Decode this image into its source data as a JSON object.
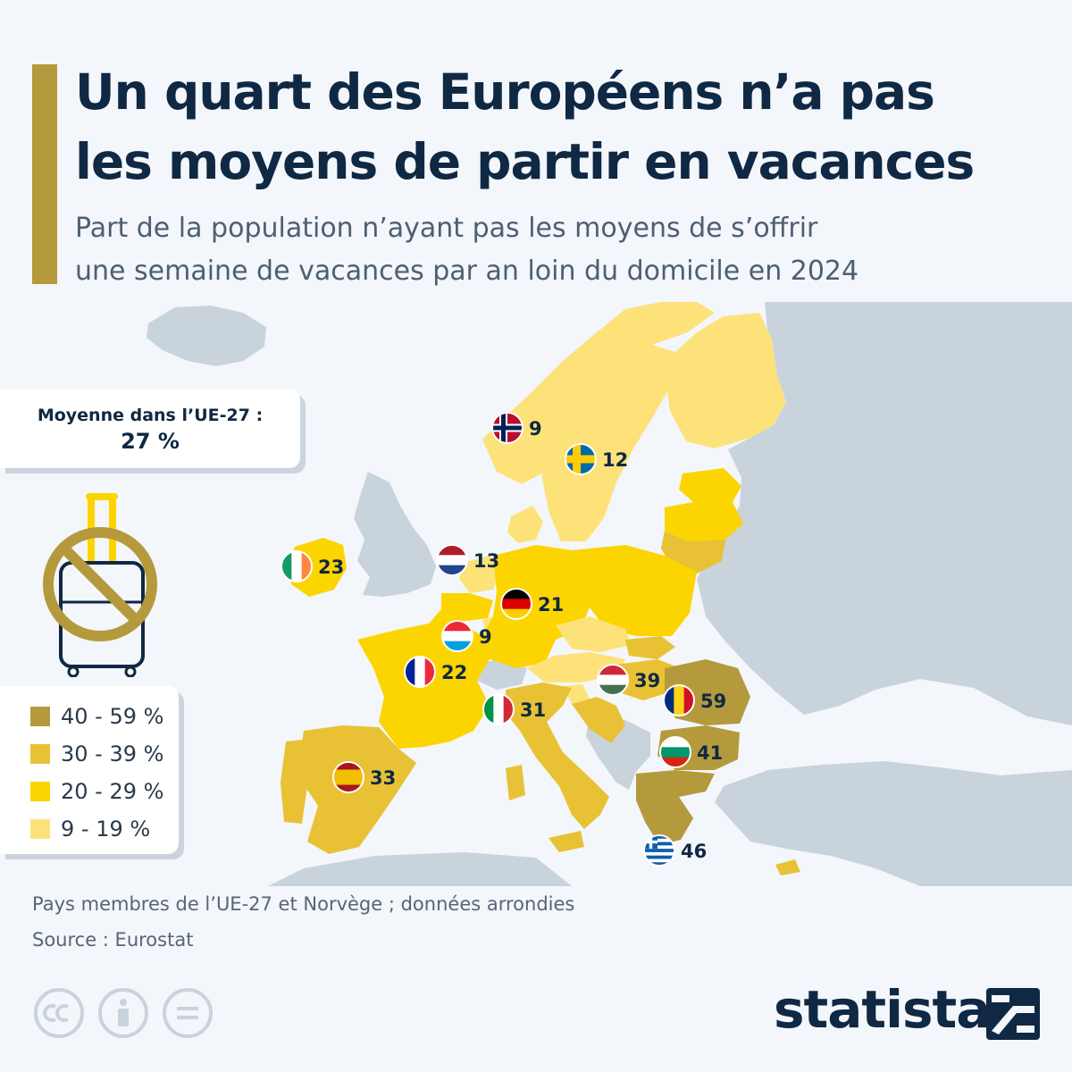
{
  "header": {
    "title_line1": "Un quart des Européens n’a pas",
    "title_line2": "les moyens de partir en vacances",
    "subtitle_line1": "Part de la population n’ayant pas les moyens de s’offrir",
    "subtitle_line2": "une semaine de vacances par an loin du domicile en 2024"
  },
  "average": {
    "label": "Moyenne dans l’UE-27 :",
    "value": "27 %"
  },
  "legend": [
    {
      "label": "40 - 59 %",
      "color": "#b49a3c"
    },
    {
      "label": "30 - 39 %",
      "color": "#e8c234"
    },
    {
      "label": "20 - 29 %",
      "color": "#fcd400"
    },
    {
      "label": "9 - 19 %",
      "color": "#fde27a"
    }
  ],
  "colors": {
    "non_member": "#c9d3dc",
    "sea": "#f3f6fa",
    "accent": "#b49a3c"
  },
  "countries": [
    {
      "name": "Norvège",
      "value": 9,
      "flag": "no"
    },
    {
      "name": "Suède",
      "value": 12,
      "flag": "se"
    },
    {
      "name": "Pays-Bas",
      "value": 13,
      "flag": "nl"
    },
    {
      "name": "Irlande",
      "value": 23,
      "flag": "ie"
    },
    {
      "name": "Allemagne",
      "value": 21,
      "flag": "de"
    },
    {
      "name": "Luxembourg",
      "value": 9,
      "flag": "lu"
    },
    {
      "name": "France",
      "value": 22,
      "flag": "fr"
    },
    {
      "name": "Hongrie",
      "value": 39,
      "flag": "hu"
    },
    {
      "name": "Roumanie",
      "value": 59,
      "flag": "ro"
    },
    {
      "name": "Italie",
      "value": 31,
      "flag": "it"
    },
    {
      "name": "Bulgarie",
      "value": 41,
      "flag": "bg"
    },
    {
      "name": "Espagne",
      "value": 33,
      "flag": "es"
    },
    {
      "name": "Grèce",
      "value": 46,
      "flag": "gr"
    }
  ],
  "footer": {
    "note": "Pays membres de l’UE-27 et Norvège ; données arrondies",
    "source": "Source : Eurostat",
    "brand": "statista"
  },
  "icons": [
    "no-suitcase-icon",
    "cc-icon",
    "by-icon",
    "nd-icon",
    "statista-logo-icon"
  ]
}
